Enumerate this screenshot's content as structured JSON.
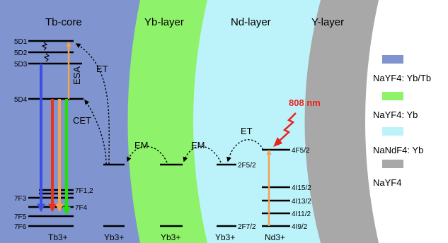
{
  "regions": {
    "core": "Tb-core",
    "yb_layer": "Yb-layer",
    "nd_layer": "Nd-layer",
    "y_layer": "Y-layer"
  },
  "colors": {
    "core": "#8094CF",
    "yb_layer": "#8EF26A",
    "nd_layer": "#BCF3FA",
    "y_layer": "#A8A8A8",
    "blue_arrow": "#3B4FE6",
    "red_arrow": "#E8341E",
    "orange_arrow": "#F2A251",
    "green_arrow": "#22E000",
    "laser": "#E8231E"
  },
  "tb_levels": {
    "d1": "5D1",
    "d2": "5D2",
    "d3": "5D3",
    "d4": "5D4",
    "f12": "7F1,2",
    "f3": "7F3",
    "f4": "7F4",
    "f5": "7F5",
    "f6": "7F6"
  },
  "nd_levels": {
    "f52": "4F5/2",
    "i152": "4I15/2",
    "i132": "4I13/2",
    "i112": "4I11/2",
    "i92": "4I9/2"
  },
  "yb_levels": {
    "f52": "2F5/2",
    "f72": "2F7/2"
  },
  "processes": {
    "et_top": "ET",
    "esa": "ESA",
    "cet": "CET",
    "em1": "EM",
    "em2": "EM",
    "et_nd": "ET"
  },
  "ions": {
    "tb": "Tb3+",
    "yb1": "Yb3+",
    "yb2": "Yb3+",
    "yb3": "Yb3+",
    "nd": "Nd3+"
  },
  "laser": "808 nm",
  "legend": [
    {
      "label": "NaYF4: Yb/Tb",
      "color": "#8094CF"
    },
    {
      "label": "NaYF4: Yb",
      "color": "#8EF26A"
    },
    {
      "label": "NaNdF4: Yb",
      "color": "#BCF3FA"
    },
    {
      "label": "NaYF4",
      "color": "#A8A8A8"
    }
  ]
}
